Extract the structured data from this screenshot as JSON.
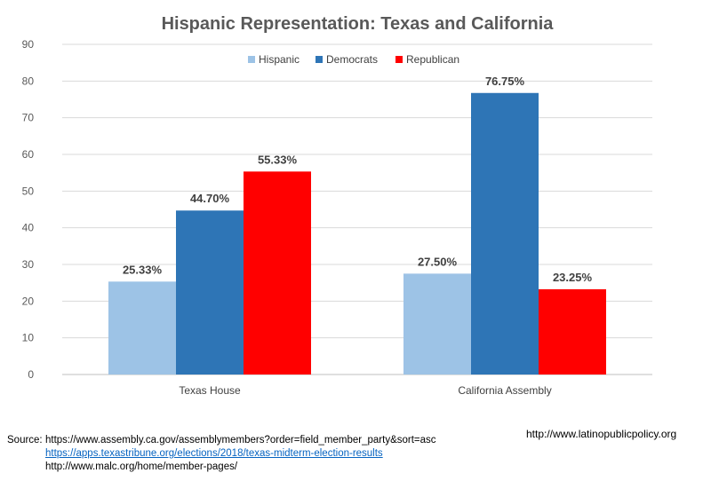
{
  "chart_data": {
    "type": "bar",
    "title": "Hispanic Representation: Texas and California",
    "categories": [
      "Texas House",
      "California Assembly"
    ],
    "series": [
      {
        "name": "Hispanic",
        "values": [
          25.33,
          27.5
        ],
        "labels": [
          "25.33%",
          "27.50%"
        ],
        "color": "#9dc3e6"
      },
      {
        "name": "Democrats",
        "values": [
          44.7,
          76.75
        ],
        "labels": [
          "44.70%",
          "76.75%"
        ],
        "color": "#2e75b6"
      },
      {
        "name": "Republican",
        "values": [
          55.33,
          23.25
        ],
        "labels": [
          "55.33%",
          "23.25%"
        ],
        "color": "#ff0000"
      }
    ],
    "ylim": [
      0,
      90
    ],
    "yticks": [
      0,
      10,
      20,
      30,
      40,
      50,
      60,
      70,
      80,
      90
    ],
    "xlabel": "",
    "ylabel": "",
    "grid": true,
    "legend_position": "top-center"
  },
  "footer": {
    "source_label": "Source:",
    "sources": [
      "https://www.assembly.ca.gov/assemblymembers?order=field_member_party&sort=asc",
      "https://apps.texastribune.org/elections/2018/texas-midterm-election-results",
      "http://www.malc.org/home/member-pages/"
    ],
    "site": "http://www.latinopublicpolicy.org"
  }
}
